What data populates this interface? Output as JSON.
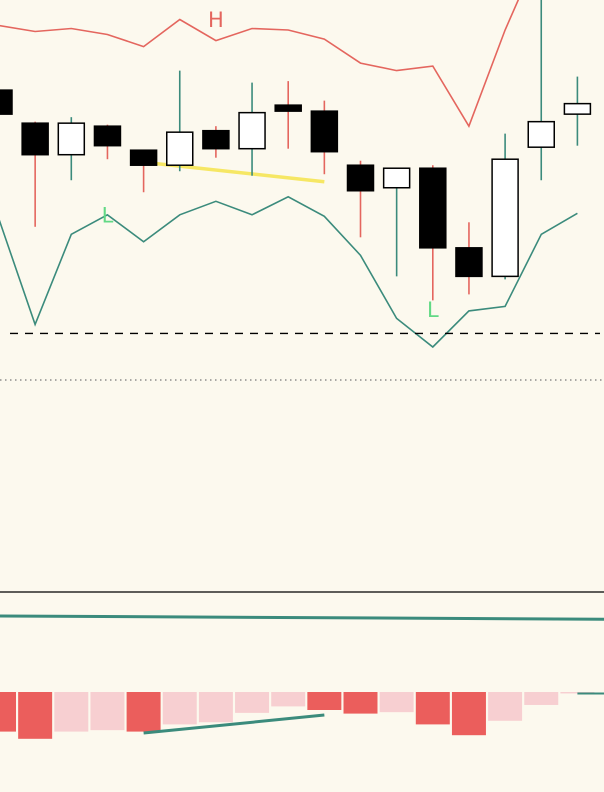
{
  "chart_data": [
    {
      "type": "candlestick",
      "title": "",
      "xlabel": "",
      "ylabel": "",
      "bar_count": 17,
      "bars": [
        {
          "i": 0,
          "open": 55.0,
          "close": 53.4,
          "high": 55.3,
          "low": 53.4
        },
        {
          "i": 1,
          "open": 52.8,
          "close": 50.7,
          "high": 52.9,
          "low": 45.9
        },
        {
          "i": 2,
          "open": 50.7,
          "close": 52.8,
          "high": 53.2,
          "low": 49.0
        },
        {
          "i": 3,
          "open": 52.6,
          "close": 51.3,
          "high": 52.7,
          "low": 50.4
        },
        {
          "i": 4,
          "open": 51.0,
          "close": 50.0,
          "high": 51.0,
          "low": 48.2
        },
        {
          "i": 5,
          "open": 50.0,
          "close": 52.2,
          "high": 56.3,
          "low": 49.6
        },
        {
          "i": 6,
          "open": 52.3,
          "close": 51.1,
          "high": 52.6,
          "low": 50.5
        },
        {
          "i": 7,
          "open": 51.1,
          "close": 53.5,
          "high": 55.5,
          "low": 49.3
        },
        {
          "i": 8,
          "open": 54.0,
          "close": 53.6,
          "high": 55.6,
          "low": 51.1
        },
        {
          "i": 9,
          "open": 53.6,
          "close": 50.9,
          "high": 54.3,
          "low": 49.4
        },
        {
          "i": 10,
          "open": 50.0,
          "close": 48.3,
          "high": 50.3,
          "low": 45.2
        },
        {
          "i": 11,
          "open": 48.5,
          "close": 49.8,
          "high": 49.8,
          "low": 42.6
        },
        {
          "i": 12,
          "open": 49.8,
          "close": 44.5,
          "high": 50.0,
          "low": 41.0
        },
        {
          "i": 13,
          "open": 44.5,
          "close": 42.6,
          "high": 46.2,
          "low": 41.4
        },
        {
          "i": 14,
          "open": 42.6,
          "close": 50.4,
          "high": 52.1,
          "low": 42.4
        },
        {
          "i": 15,
          "open": 51.2,
          "close": 52.9,
          "high": 63.0,
          "low": 49.0
        },
        {
          "i": 16,
          "open": 53.4,
          "close": 54.1,
          "high": 55.9,
          "low": 51.3
        }
      ],
      "upper_band": [
        59.3,
        58.9,
        59.1,
        58.7,
        57.9,
        59.7,
        58.3,
        59.1,
        59.0,
        58.4,
        56.8,
        56.3,
        56.6,
        52.6,
        59.0,
        64.5,
        65.5
      ],
      "lower_band": [
        46.4,
        39.4,
        45.4,
        46.7,
        44.9,
        46.7,
        47.6,
        46.7,
        47.9,
        46.6,
        44.0,
        39.8,
        37.9,
        40.3,
        40.6,
        45.4,
        46.8
      ],
      "support_level": 38.8,
      "trend_line": {
        "from_i": 4,
        "from_v": 50.2,
        "to_i": 9,
        "to_v": 48.9
      },
      "pivot_labels": [
        {
          "text": "H",
          "i": 6,
          "v": 59.2,
          "kind": "high"
        },
        {
          "text": "L",
          "i": 3,
          "v": 46.2,
          "kind": "low"
        },
        {
          "text": "L",
          "i": 12,
          "v": 39.9,
          "kind": "low"
        }
      ],
      "ylim": [
        35.7,
        61.0
      ],
      "colors": {
        "band_upper": "#e4665e",
        "band_lower": "#3b8b7c",
        "wick_up": "#3b8b7c",
        "wick_down": "#e4665e",
        "trend": "#f6e764",
        "label_high": "#e4665e",
        "label_low": "#62d985",
        "body_up": "#ffffff",
        "body_down": "#000000"
      }
    },
    {
      "type": "line",
      "series": [
        {
          "values": [
            0.5,
            0.4
          ]
        }
      ],
      "ylim": [
        0,
        1
      ],
      "colors": {
        "line": "#3b8b7c",
        "separator": "#000000"
      }
    },
    {
      "type": "bar",
      "values": [
        -0.55,
        -0.65,
        -0.55,
        -0.53,
        -0.55,
        -0.45,
        -0.42,
        -0.29,
        -0.2,
        -0.25,
        -0.3,
        -0.28,
        -0.45,
        -0.6,
        -0.4,
        -0.18,
        -0.02,
        0.05
      ],
      "strong": [
        true,
        true,
        false,
        false,
        true,
        false,
        false,
        false,
        false,
        true,
        true,
        false,
        true,
        true,
        false,
        false,
        false,
        false
      ],
      "divergence_line": {
        "from_i": 4,
        "from_v": -0.57,
        "to_i": 9,
        "to_v": -0.32
      },
      "ylim": [
        -1.0,
        1.0
      ],
      "colors": {
        "strong": "#eb5e5c",
        "weak": "#f7cfd1",
        "divergence": "#3b8b7c",
        "tail": "#3b8b7c"
      }
    }
  ]
}
